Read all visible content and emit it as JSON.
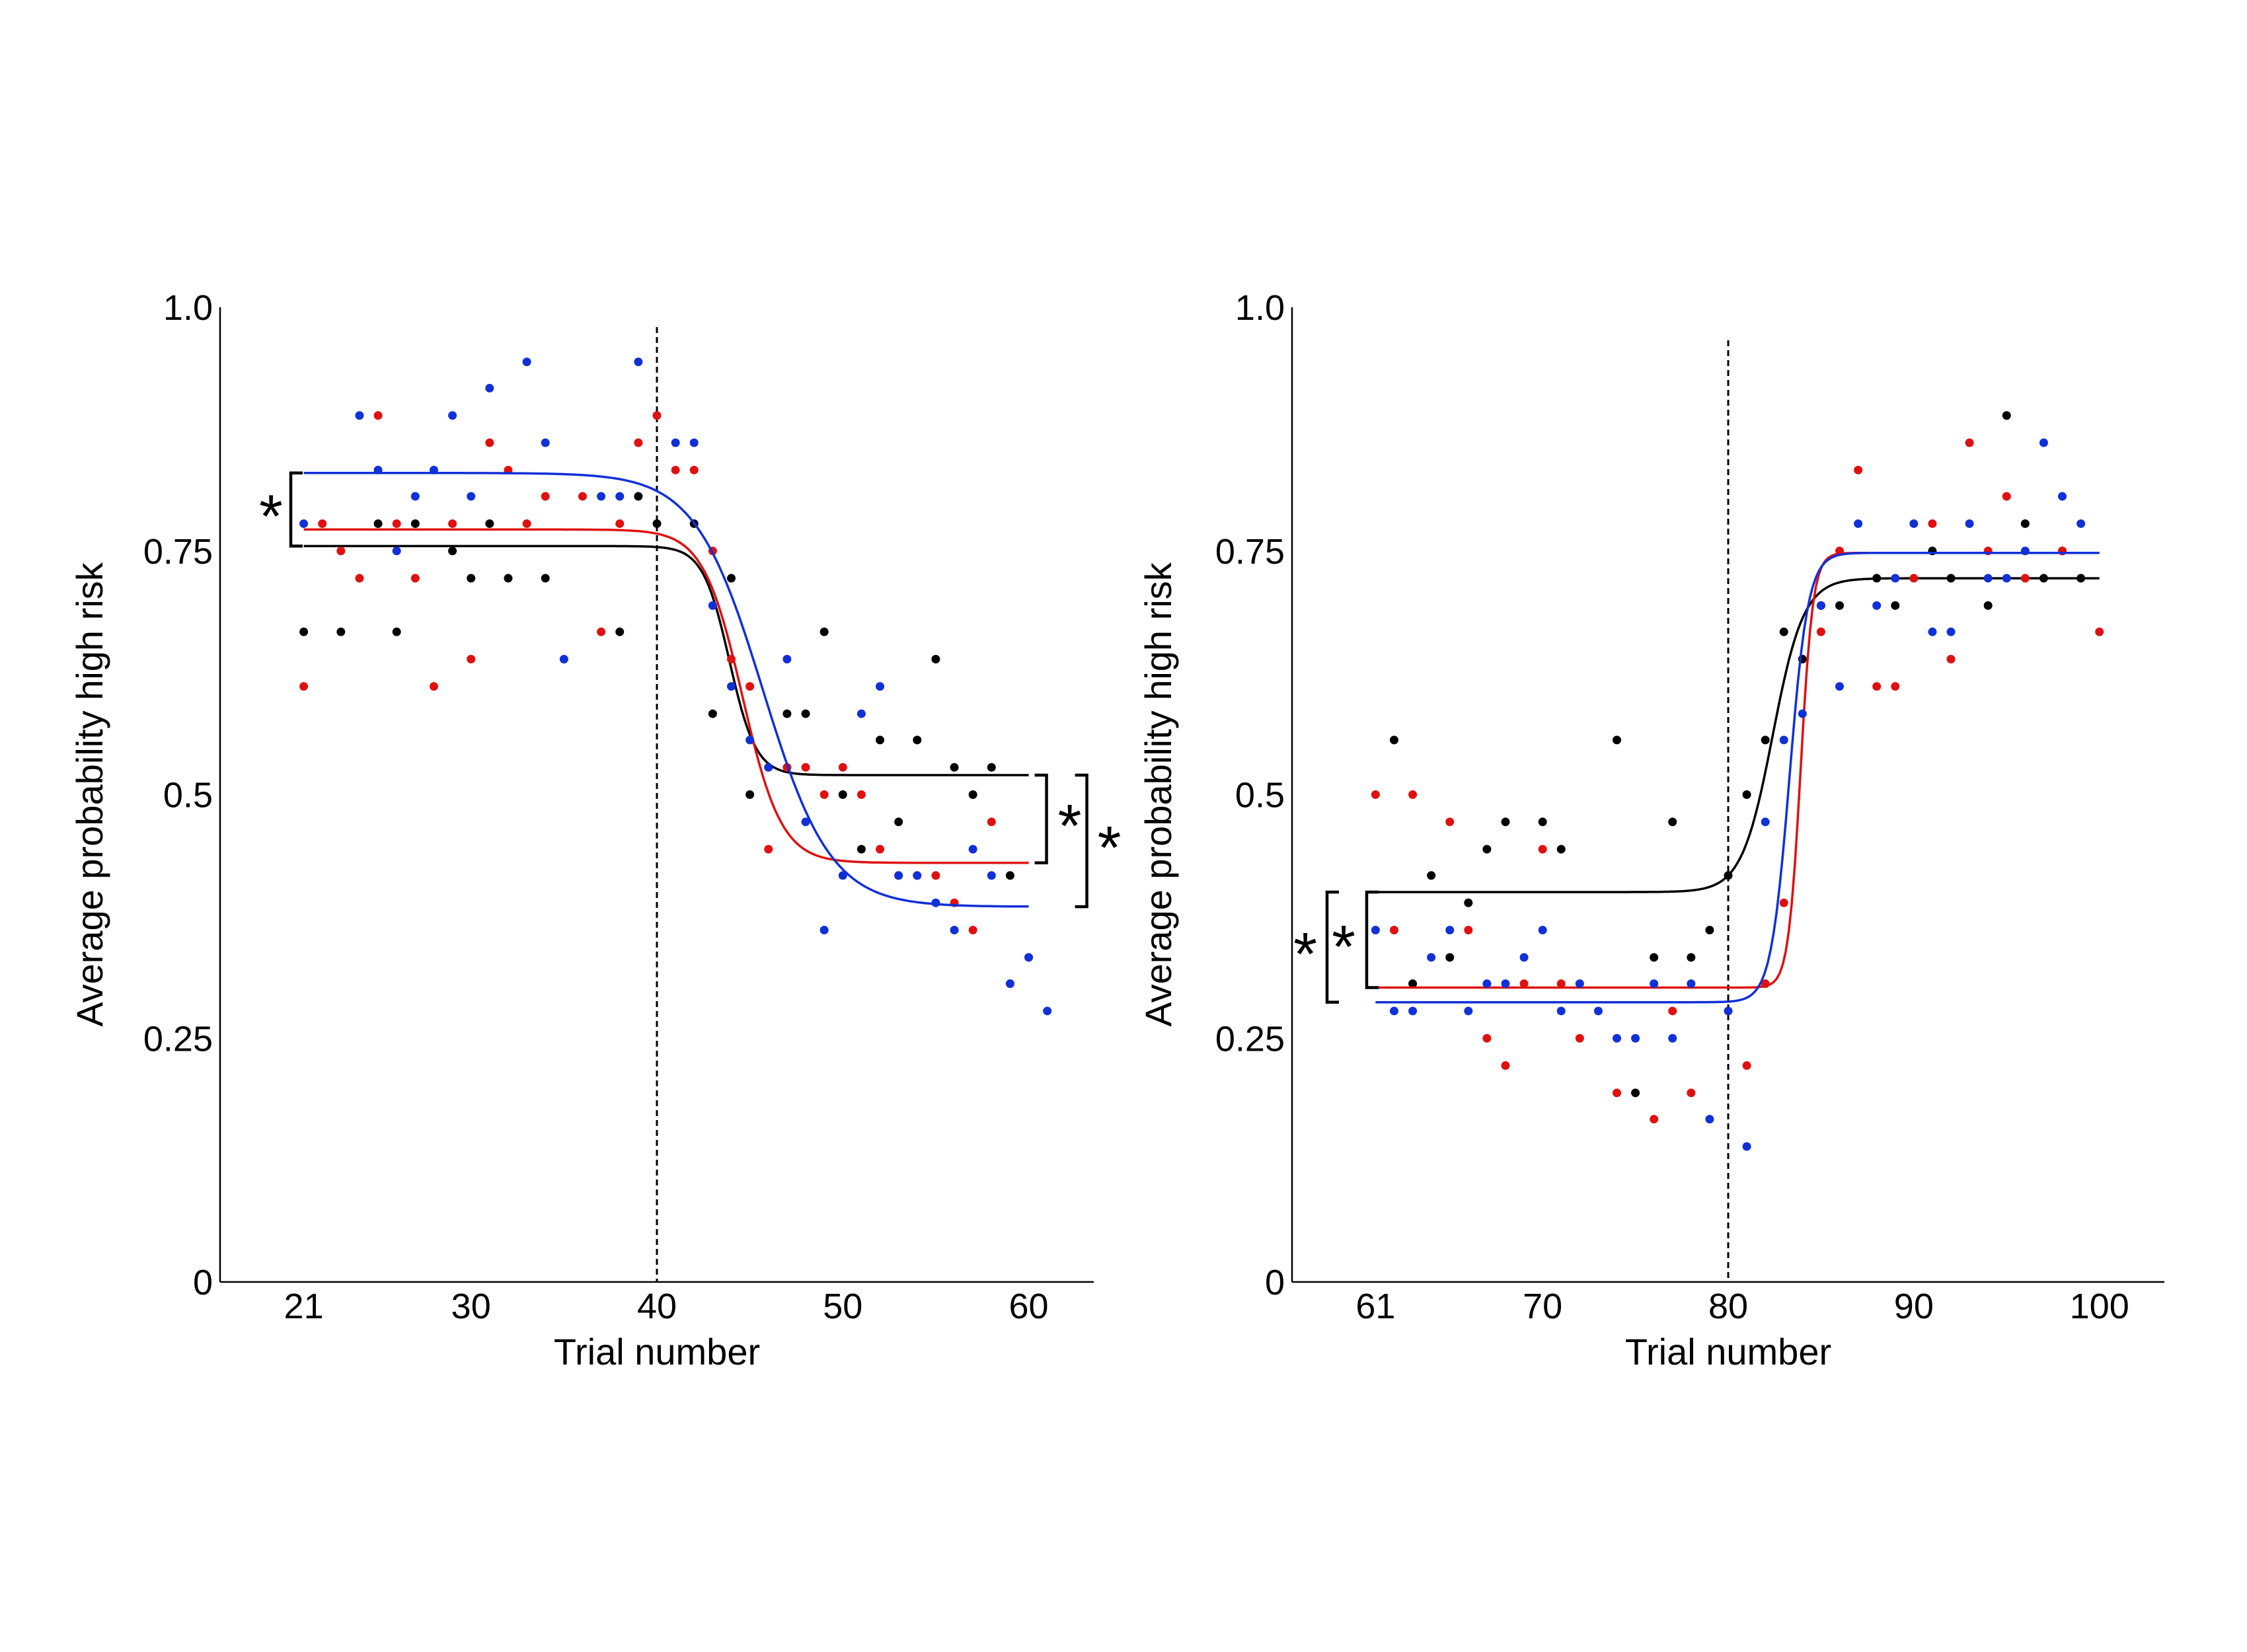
{
  "colors": {
    "black": "#000000",
    "red": "#e01010",
    "blue": "#1030d8"
  },
  "chart_data": [
    {
      "type": "scatter",
      "title": "",
      "xlabel": "Trial number",
      "ylabel": "Average probability high risk",
      "xlim": [
        16.5,
        63.5
      ],
      "ylim": [
        0,
        1.0
      ],
      "x_ticks": [
        21,
        30,
        40,
        50,
        60
      ],
      "y_ticks": [
        0,
        0.25,
        0.5,
        0.75,
        1.0
      ],
      "y_tick_labels": [
        "0",
        "0.25",
        "0.5",
        "0.75",
        "1.0"
      ],
      "grid": false,
      "reversal_trial": 40,
      "significance_marks": [
        "*",
        "*",
        "*"
      ],
      "series": [
        {
          "color": "black",
          "points": [
            [
              21,
              0.667
            ],
            [
              23,
              0.667
            ],
            [
              25,
              0.778
            ],
            [
              26,
              0.667
            ],
            [
              27,
              0.778
            ],
            [
              29,
              0.75
            ],
            [
              30,
              0.722
            ],
            [
              31,
              0.778
            ],
            [
              32,
              0.722
            ],
            [
              34,
              0.722
            ],
            [
              38,
              0.667
            ],
            [
              39,
              0.806
            ],
            [
              40,
              0.778
            ],
            [
              42,
              0.778
            ],
            [
              43,
              0.583
            ],
            [
              44,
              0.722
            ],
            [
              45,
              0.5
            ],
            [
              46,
              0.528
            ],
            [
              47,
              0.583
            ],
            [
              48,
              0.583
            ],
            [
              49,
              0.667
            ],
            [
              50,
              0.5
            ],
            [
              51,
              0.444
            ],
            [
              52,
              0.556
            ],
            [
              53,
              0.472
            ],
            [
              54,
              0.556
            ],
            [
              55,
              0.639
            ],
            [
              56,
              0.528
            ],
            [
              57,
              0.5
            ],
            [
              58,
              0.528
            ],
            [
              59,
              0.417
            ]
          ],
          "fit": {
            "start": 0.755,
            "end": 0.52,
            "mid": 43.9,
            "slope": 1.4,
            "x_range": [
              21,
              60
            ]
          }
        },
        {
          "color": "red",
          "points": [
            [
              21,
              0.611
            ],
            [
              22,
              0.778
            ],
            [
              23,
              0.75
            ],
            [
              24,
              0.722
            ],
            [
              25,
              0.889
            ],
            [
              26,
              0.778
            ],
            [
              27,
              0.722
            ],
            [
              28,
              0.611
            ],
            [
              29,
              0.778
            ],
            [
              30,
              0.639
            ],
            [
              31,
              0.861
            ],
            [
              32,
              0.833
            ],
            [
              33,
              0.778
            ],
            [
              34,
              0.806
            ],
            [
              36,
              0.806
            ],
            [
              37,
              0.667
            ],
            [
              38,
              0.778
            ],
            [
              39,
              0.861
            ],
            [
              40,
              0.889
            ],
            [
              41,
              0.833
            ],
            [
              42,
              0.833
            ],
            [
              43,
              0.75
            ],
            [
              44,
              0.639
            ],
            [
              45,
              0.611
            ],
            [
              46,
              0.444
            ],
            [
              47,
              0.528
            ],
            [
              48,
              0.528
            ],
            [
              49,
              0.5
            ],
            [
              50,
              0.528
            ],
            [
              51,
              0.5
            ],
            [
              52,
              0.444
            ],
            [
              53,
              0.417
            ],
            [
              54,
              0.417
            ],
            [
              55,
              0.417
            ],
            [
              56,
              0.389
            ],
            [
              57,
              0.361
            ],
            [
              58,
              0.472
            ],
            [
              59,
              0.306
            ],
            [
              60,
              0.333
            ]
          ],
          "fit": {
            "start": 0.772,
            "end": 0.43,
            "mid": 44.6,
            "slope": 0.95,
            "x_range": [
              21,
              60
            ]
          }
        },
        {
          "color": "blue",
          "points": [
            [
              21,
              0.778
            ],
            [
              24,
              0.889
            ],
            [
              25,
              0.833
            ],
            [
              26,
              0.75
            ],
            [
              27,
              0.806
            ],
            [
              28,
              0.833
            ],
            [
              29,
              0.889
            ],
            [
              30,
              0.806
            ],
            [
              31,
              0.917
            ],
            [
              33,
              0.944
            ],
            [
              34,
              0.861
            ],
            [
              35,
              0.639
            ],
            [
              37,
              0.806
            ],
            [
              38,
              0.806
            ],
            [
              39,
              0.944
            ],
            [
              41,
              0.861
            ],
            [
              42,
              0.861
            ],
            [
              43,
              0.694
            ],
            [
              44,
              0.611
            ],
            [
              45,
              0.556
            ],
            [
              46,
              0.528
            ],
            [
              47,
              0.639
            ],
            [
              48,
              0.472
            ],
            [
              49,
              0.361
            ],
            [
              50,
              0.417
            ],
            [
              51,
              0.583
            ],
            [
              52,
              0.611
            ],
            [
              53,
              0.417
            ],
            [
              54,
              0.417
            ],
            [
              55,
              0.389
            ],
            [
              56,
              0.361
            ],
            [
              57,
              0.444
            ],
            [
              58,
              0.417
            ],
            [
              59,
              0.306
            ],
            [
              60,
              0.333
            ],
            [
              61,
              0.278
            ]
          ],
          "fit": {
            "start": 0.83,
            "end": 0.385,
            "mid": 45.7,
            "slope": 0.55,
            "x_range": [
              21,
              60
            ]
          }
        }
      ]
    },
    {
      "type": "scatter",
      "title": "",
      "xlabel": "Trial number",
      "ylabel": "Average probability high risk",
      "xlim": [
        56.5,
        103.5
      ],
      "ylim": [
        0,
        1.0
      ],
      "x_ticks": [
        61,
        70,
        80,
        90,
        100
      ],
      "y_ticks": [
        0,
        0.25,
        0.5,
        0.75,
        1.0
      ],
      "y_tick_labels": [
        "0",
        "0.25",
        "0.5",
        "0.75",
        "1.0"
      ],
      "grid": false,
      "reversal_trial": 80,
      "significance_marks": [
        "*",
        "*"
      ],
      "series": [
        {
          "color": "black",
          "points": [
            [
              62,
              0.556
            ],
            [
              63,
              0.306
            ],
            [
              64,
              0.417
            ],
            [
              65,
              0.333
            ],
            [
              66,
              0.389
            ],
            [
              67,
              0.444
            ],
            [
              68,
              0.472
            ],
            [
              70,
              0.472
            ],
            [
              71,
              0.444
            ],
            [
              74,
              0.556
            ],
            [
              75,
              0.194
            ],
            [
              76,
              0.333
            ],
            [
              77,
              0.472
            ],
            [
              78,
              0.333
            ],
            [
              79,
              0.361
            ],
            [
              80,
              0.417
            ],
            [
              81,
              0.5
            ],
            [
              82,
              0.556
            ],
            [
              83,
              0.667
            ],
            [
              84,
              0.639
            ],
            [
              85,
              0.694
            ],
            [
              86,
              0.694
            ],
            [
              88,
              0.722
            ],
            [
              89,
              0.694
            ],
            [
              91,
              0.75
            ],
            [
              92,
              0.722
            ],
            [
              94,
              0.694
            ],
            [
              95,
              0.889
            ],
            [
              96,
              0.778
            ],
            [
              97,
              0.722
            ],
            [
              98,
              0.75
            ],
            [
              99,
              0.722
            ]
          ],
          "fit": {
            "start": 0.4,
            "end": 0.722,
            "mid": 82.4,
            "slope": 1.2,
            "x_range": [
              61,
              100
            ]
          }
        },
        {
          "color": "red",
          "points": [
            [
              61,
              0.5
            ],
            [
              62,
              0.361
            ],
            [
              63,
              0.5
            ],
            [
              65,
              0.472
            ],
            [
              66,
              0.361
            ],
            [
              67,
              0.25
            ],
            [
              68,
              0.222
            ],
            [
              69,
              0.306
            ],
            [
              70,
              0.444
            ],
            [
              71,
              0.306
            ],
            [
              72,
              0.25
            ],
            [
              74,
              0.194
            ],
            [
              76,
              0.167
            ],
            [
              77,
              0.278
            ],
            [
              78,
              0.194
            ],
            [
              81,
              0.222
            ],
            [
              82,
              0.306
            ],
            [
              83,
              0.389
            ],
            [
              85,
              0.667
            ],
            [
              86,
              0.75
            ],
            [
              87,
              0.833
            ],
            [
              88,
              0.611
            ],
            [
              89,
              0.611
            ],
            [
              90,
              0.722
            ],
            [
              91,
              0.778
            ],
            [
              92,
              0.639
            ],
            [
              93,
              0.861
            ],
            [
              94,
              0.75
            ],
            [
              95,
              0.806
            ],
            [
              96,
              0.722
            ],
            [
              98,
              0.75
            ],
            [
              100,
              0.667
            ]
          ],
          "fit": {
            "start": 0.302,
            "end": 0.748,
            "mid": 83.9,
            "slope": 3.0,
            "x_range": [
              61,
              100
            ]
          }
        },
        {
          "color": "blue",
          "points": [
            [
              61,
              0.361
            ],
            [
              62,
              0.278
            ],
            [
              63,
              0.278
            ],
            [
              64,
              0.333
            ],
            [
              65,
              0.361
            ],
            [
              66,
              0.278
            ],
            [
              67,
              0.306
            ],
            [
              68,
              0.306
            ],
            [
              69,
              0.333
            ],
            [
              70,
              0.361
            ],
            [
              71,
              0.278
            ],
            [
              72,
              0.306
            ],
            [
              73,
              0.278
            ],
            [
              74,
              0.25
            ],
            [
              75,
              0.25
            ],
            [
              76,
              0.306
            ],
            [
              77,
              0.25
            ],
            [
              78,
              0.306
            ],
            [
              79,
              0.167
            ],
            [
              80,
              0.278
            ],
            [
              81,
              0.139
            ],
            [
              82,
              0.472
            ],
            [
              83,
              0.556
            ],
            [
              84,
              0.583
            ],
            [
              85,
              0.694
            ],
            [
              86,
              0.611
            ],
            [
              87,
              0.778
            ],
            [
              88,
              0.694
            ],
            [
              89,
              0.722
            ],
            [
              90,
              0.778
            ],
            [
              91,
              0.667
            ],
            [
              92,
              0.667
            ],
            [
              93,
              0.778
            ],
            [
              94,
              0.722
            ],
            [
              95,
              0.722
            ],
            [
              96,
              0.75
            ],
            [
              97,
              0.861
            ],
            [
              98,
              0.806
            ],
            [
              99,
              0.778
            ]
          ],
          "fit": {
            "start": 0.287,
            "end": 0.748,
            "mid": 83.3,
            "slope": 2.0,
            "x_range": [
              61,
              100
            ]
          }
        }
      ]
    }
  ]
}
